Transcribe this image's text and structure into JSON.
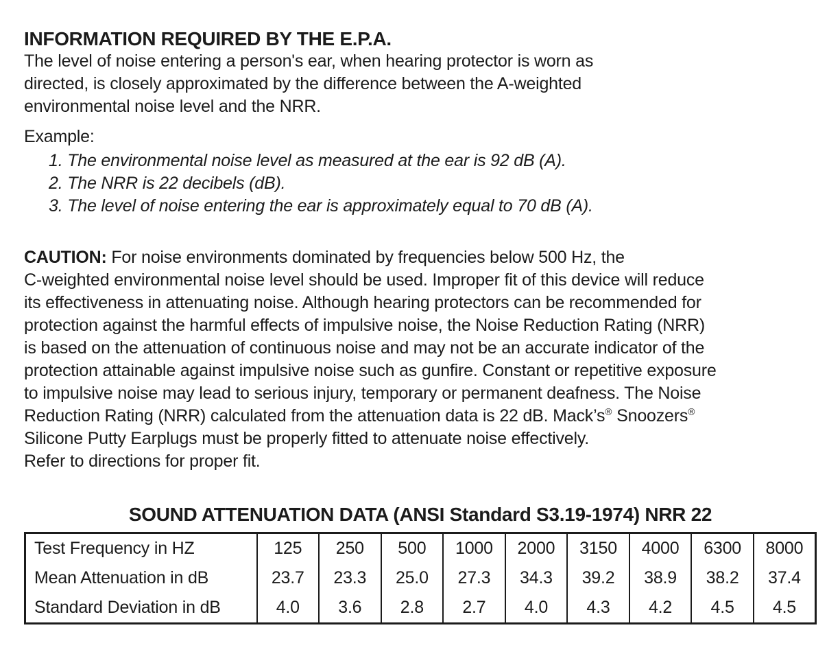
{
  "heading": "INFORMATION REQUIRED BY THE E.P.A.",
  "intro": "The level of noise entering a person's ear, when hearing protector is worn as\ndirected, is closely approximated by the difference between the A-weighted\nenvironmental noise level and the NRR.",
  "example": {
    "label": "Example:",
    "items": [
      "1. The environmental noise level as measured at the ear is 92 dB (A).",
      "2. The NRR is 22 decibels (dB).",
      "3. The level of noise entering the ear is approximately equal to 70 dB (A)."
    ]
  },
  "caution": {
    "label": "CAUTION:",
    "text_before_reg": " For noise environments dominated by frequencies below 500 Hz, the\nC-weighted environmental noise level should be used. Improper fit of this device will reduce\nits effectiveness in attenuating noise. Although hearing protectors can be recommended for\nprotection against the harmful effects of impulsive noise, the Noise Reduction Rating (NRR)\nis based on the attenuation of continuous noise and may not be an accurate indicator of the\nprotection attainable against impulsive noise such as gunfire. Constant or repetitive exposure\nto impulsive noise may lead to serious injury, temporary or permanent deafness. The Noise\nReduction Rating (NRR) calculated from the attenuation data is 22 dB. Mack’s",
    "reg_mark": "®",
    "text_between_reg": " Snoozers",
    "text_after_reg": "\nSilicone Putty Earplugs must be properly fitted to attenuate noise effectively.\nRefer to directions for proper fit."
  },
  "table": {
    "title": "SOUND ATTENUATION DATA (ANSI Standard S3.19-1974) NRR 22",
    "rows": [
      {
        "label": "Test Frequency in HZ",
        "values": [
          "125",
          "250",
          "500",
          "1000",
          "2000",
          "3150",
          "4000",
          "6300",
          "8000"
        ]
      },
      {
        "label": "Mean Attenuation in dB",
        "values": [
          "23.7",
          "23.3",
          "25.0",
          "27.3",
          "34.3",
          "39.2",
          "38.9",
          "38.2",
          "37.4"
        ]
      },
      {
        "label": "Standard Deviation in dB",
        "values": [
          "4.0",
          "3.6",
          "2.8",
          "2.7",
          "4.0",
          "4.3",
          "4.2",
          "4.5",
          "4.5"
        ]
      }
    ]
  }
}
